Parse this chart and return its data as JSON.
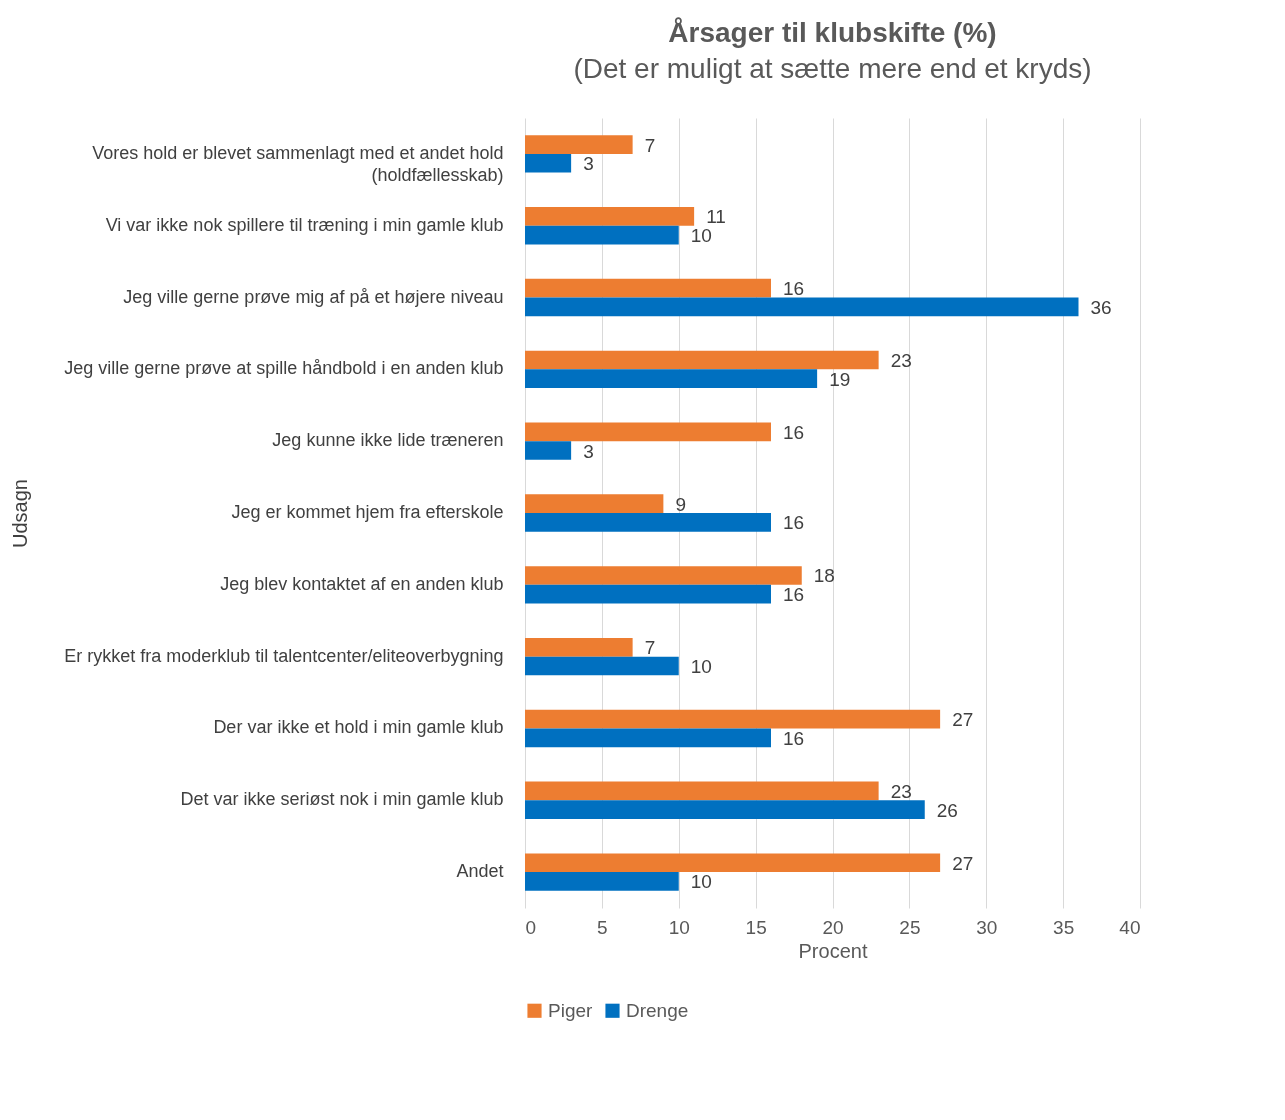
{
  "chart_data": {
    "type": "bar",
    "orientation": "horizontal",
    "title": "Årsager til klubskifte (%)",
    "subtitle": "(Det er muligt at sætte mere end et kryds)",
    "xlabel": "Procent",
    "ylabel": "Udsagn",
    "categories": [
      "Vores hold er blevet sammenlagt med et andet hold (holdfællesskab)",
      "Vi var ikke nok spillere til træning i min gamle klub",
      "Jeg ville gerne prøve mig af på et højere niveau",
      "Jeg ville gerne prøve at spille håndbold i en anden klub",
      "Jeg kunne ikke lide træneren",
      "Jeg er kommet hjem fra efterskole",
      "Jeg blev kontaktet af en anden klub",
      "Er rykket fra moderklub til talentcenter/eliteoverbygning",
      "Der var ikke et hold i min gamle klub",
      "Det var ikke seriøst nok i min gamle klub",
      "Andet"
    ],
    "series": [
      {
        "name": "Piger",
        "color": "#ed7d31",
        "values": [
          7,
          11,
          16,
          23,
          16,
          9,
          18,
          7,
          27,
          23,
          27
        ]
      },
      {
        "name": "Drenge",
        "color": "#0070c0",
        "values": [
          3,
          10,
          36,
          19,
          3,
          16,
          16,
          10,
          16,
          26,
          10
        ]
      }
    ],
    "xlim": [
      0,
      40
    ],
    "xticks": [
      0,
      5,
      10,
      15,
      20,
      25,
      30,
      35,
      40
    ],
    "grid": "x",
    "legend": "bottom",
    "data_labels": true
  }
}
